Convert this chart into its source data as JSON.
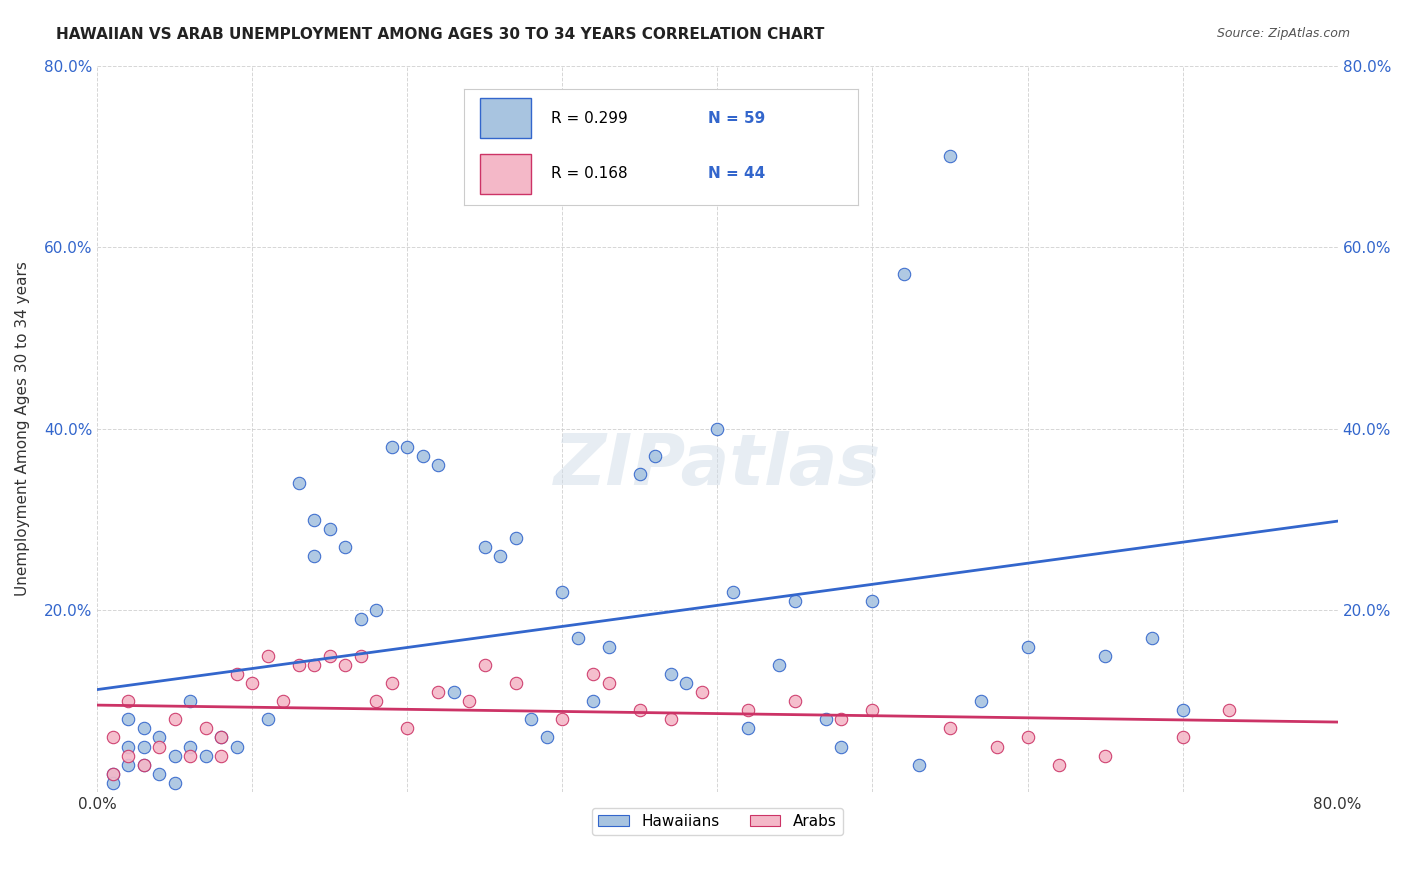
{
  "title": "HAWAIIAN VS ARAB UNEMPLOYMENT AMONG AGES 30 TO 34 YEARS CORRELATION CHART",
  "source": "Source: ZipAtlas.com",
  "xlabel": "",
  "ylabel": "Unemployment Among Ages 30 to 34 years",
  "xlim": [
    0,
    0.8
  ],
  "ylim": [
    0,
    0.8
  ],
  "background_color": "#ffffff",
  "hawaiian_color": "#a8c4e0",
  "arab_color": "#f4b8c8",
  "hawaiian_line_color": "#3366cc",
  "arab_line_color": "#cc3366",
  "R_hawaiian": 0.299,
  "N_hawaiian": 59,
  "R_arab": 0.168,
  "N_arab": 44,
  "watermark": "ZIPatlas",
  "hawaiian_x": [
    0.02,
    0.03,
    0.01,
    0.05,
    0.04,
    0.02,
    0.03,
    0.06,
    0.07,
    0.08,
    0.04,
    0.06,
    0.02,
    0.03,
    0.05,
    0.14,
    0.15,
    0.16,
    0.14,
    0.13,
    0.17,
    0.2,
    0.21,
    0.22,
    0.19,
    0.25,
    0.26,
    0.27,
    0.28,
    0.3,
    0.31,
    0.32,
    0.33,
    0.35,
    0.36,
    0.38,
    0.4,
    0.41,
    0.42,
    0.44,
    0.45,
    0.47,
    0.5,
    0.52,
    0.55,
    0.57,
    0.6,
    0.65,
    0.68,
    0.7,
    0.01,
    0.09,
    0.11,
    0.18,
    0.23,
    0.29,
    0.37,
    0.48,
    0.53
  ],
  "hawaiian_y": [
    0.05,
    0.03,
    0.02,
    0.04,
    0.06,
    0.08,
    0.07,
    0.05,
    0.04,
    0.06,
    0.02,
    0.1,
    0.03,
    0.05,
    0.01,
    0.3,
    0.29,
    0.27,
    0.26,
    0.34,
    0.19,
    0.38,
    0.37,
    0.36,
    0.38,
    0.27,
    0.26,
    0.28,
    0.08,
    0.22,
    0.17,
    0.1,
    0.16,
    0.35,
    0.37,
    0.12,
    0.4,
    0.22,
    0.07,
    0.14,
    0.21,
    0.08,
    0.21,
    0.57,
    0.7,
    0.1,
    0.16,
    0.15,
    0.17,
    0.09,
    0.01,
    0.05,
    0.08,
    0.2,
    0.11,
    0.06,
    0.13,
    0.05,
    0.03
  ],
  "arab_x": [
    0.01,
    0.02,
    0.03,
    0.01,
    0.04,
    0.05,
    0.06,
    0.07,
    0.08,
    0.09,
    0.1,
    0.11,
    0.12,
    0.13,
    0.14,
    0.15,
    0.16,
    0.17,
    0.18,
    0.19,
    0.2,
    0.22,
    0.24,
    0.25,
    0.27,
    0.3,
    0.32,
    0.35,
    0.37,
    0.39,
    0.42,
    0.45,
    0.48,
    0.5,
    0.55,
    0.58,
    0.6,
    0.65,
    0.7,
    0.73,
    0.02,
    0.08,
    0.33,
    0.62
  ],
  "arab_y": [
    0.02,
    0.04,
    0.03,
    0.06,
    0.05,
    0.08,
    0.04,
    0.07,
    0.06,
    0.13,
    0.12,
    0.15,
    0.1,
    0.14,
    0.14,
    0.15,
    0.14,
    0.15,
    0.1,
    0.12,
    0.07,
    0.11,
    0.1,
    0.14,
    0.12,
    0.08,
    0.13,
    0.09,
    0.08,
    0.11,
    0.09,
    0.1,
    0.08,
    0.09,
    0.07,
    0.05,
    0.06,
    0.04,
    0.06,
    0.09,
    0.1,
    0.04,
    0.12,
    0.03
  ]
}
